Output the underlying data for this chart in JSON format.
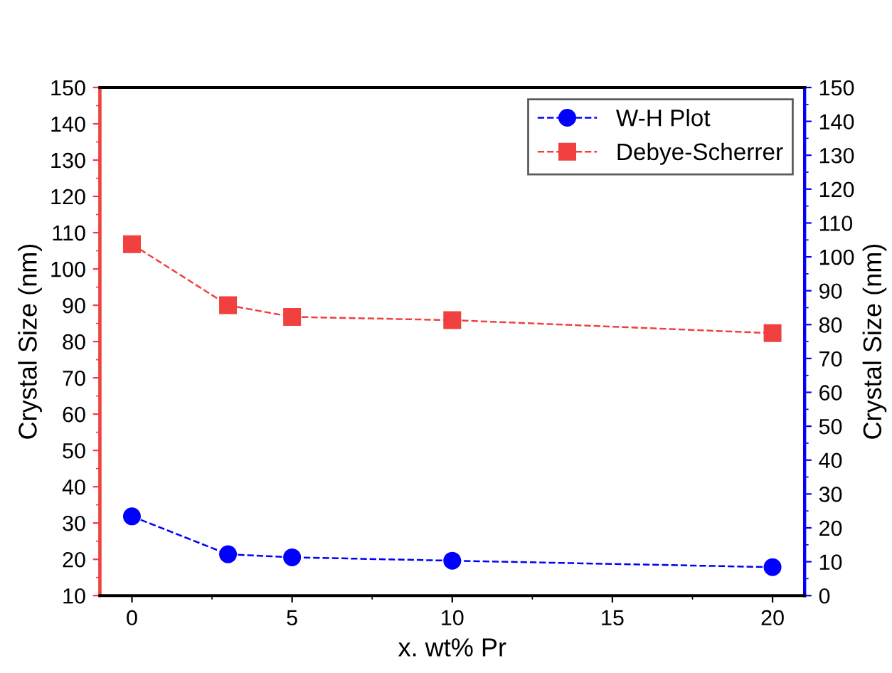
{
  "chart_data": {
    "type": "line",
    "xlabel": "x. wt% Pr",
    "ylabel": "Crystal Size (nm)",
    "y2label": "Crystal Size (nm)",
    "x": [
      0,
      3,
      5,
      10,
      20
    ],
    "series": [
      {
        "name": "W-H Plot",
        "color": "#0000ff",
        "marker": "circle",
        "axis": "y2",
        "values": [
          23.4,
          12.2,
          11.3,
          10.3,
          8.4
        ]
      },
      {
        "name": "Debye-Scherrer",
        "color": "#f04040",
        "marker": "square",
        "values": [
          106.8,
          90.0,
          86.8,
          85.9,
          82.3
        ]
      }
    ],
    "xlim": [
      -1,
      21
    ],
    "xticks": [
      0,
      5,
      10,
      15,
      20
    ],
    "ylim": [
      10,
      150
    ],
    "yticks": [
      10,
      20,
      30,
      40,
      50,
      60,
      70,
      80,
      90,
      100,
      110,
      120,
      130,
      140,
      150
    ],
    "y2lim": [
      0,
      150
    ],
    "y2ticks": [
      0,
      10,
      20,
      30,
      40,
      50,
      60,
      70,
      80,
      90,
      100,
      110,
      120,
      130,
      140,
      150
    ],
    "line_style": "dashed",
    "legend": "top right",
    "grid": false
  }
}
